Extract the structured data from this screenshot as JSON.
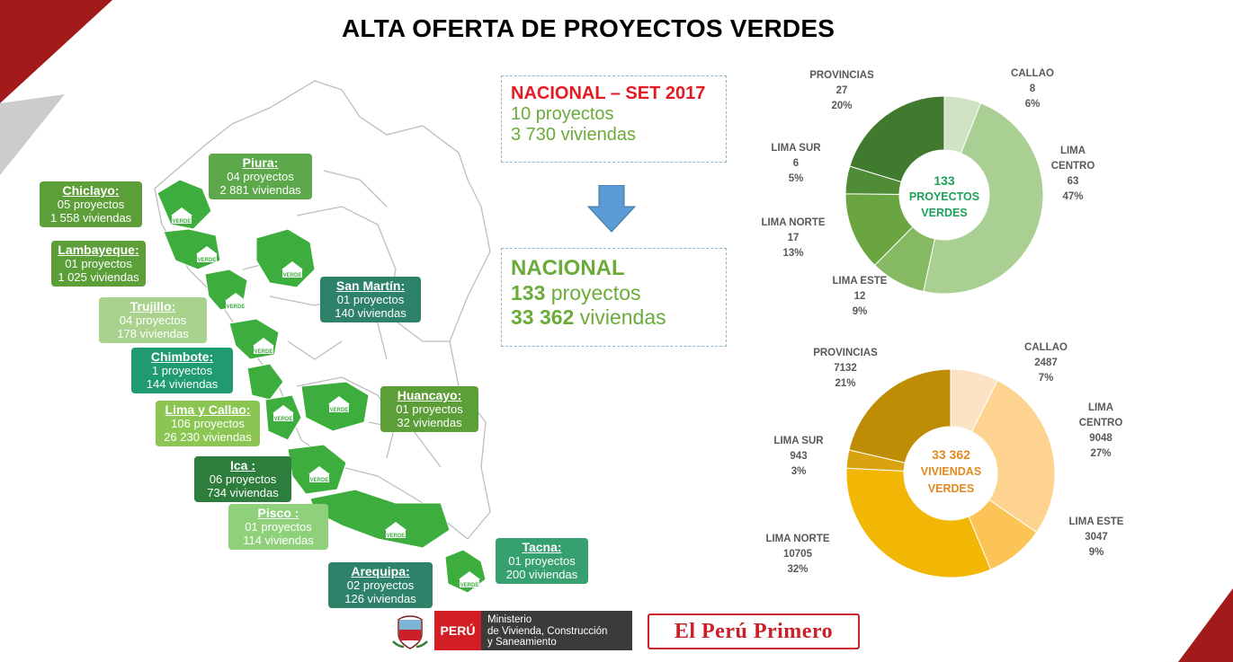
{
  "title": "ALTA OFERTA DE PROYECTOS VERDES",
  "colors": {
    "red": "#c9202a",
    "green_dark": "#2f7d32",
    "green_mid": "#4caf50",
    "teal": "#2e8b6e",
    "gold": "#e6a817"
  },
  "regions": [
    {
      "name": "Piura:",
      "projects": "04 proyectos",
      "homes": "2 881 viviendas",
      "color": "#5ca84a"
    },
    {
      "name": "Chiclayo:",
      "projects": "05 proyectos",
      "homes": "1 558 viviendas",
      "color": "#5c9e38"
    },
    {
      "name": "Lambayeque:",
      "projects": "01 proyectos",
      "homes": "1 025 viviendas",
      "color": "#5c9e38"
    },
    {
      "name": "San Martín:",
      "projects": "01 proyectos",
      "homes": "140 viviendas",
      "color": "#2e8269"
    },
    {
      "name": "Trujillo:",
      "projects": "04 proyectos",
      "homes": "178 viviendas",
      "color": "#a9d38c"
    },
    {
      "name": "Chimbote:",
      "projects": "1 proyectos",
      "homes": "144 viviendas",
      "color": "#1f9a72"
    },
    {
      "name": "Huancayo:",
      "projects": "01 proyectos",
      "homes": "32 viviendas",
      "color": "#5c9e38"
    },
    {
      "name": "Lima y Callao:",
      "projects": "106 proyectos",
      "homes": "26 230 viviendas",
      "color": "#8ac651"
    },
    {
      "name": "Ica :",
      "projects": "06 proyectos",
      "homes": "734 viviendas",
      "color": "#2d7d3c"
    },
    {
      "name": "Pisco :",
      "projects": "01 proyectos",
      "homes": "114 viviendas",
      "color": "#8fd17a"
    },
    {
      "name": "Tacna:",
      "projects": "01 proyectos",
      "homes": "200 viviendas",
      "color": "#36a06f"
    },
    {
      "name": "Arequipa:",
      "projects": "02 proyectos",
      "homes": "126 viviendas",
      "color": "#2e8269"
    }
  ],
  "map_badge": "VERDE",
  "national_set": {
    "header": "NACIONAL – SET 2017",
    "projects": "10 proyectos",
    "homes": "3 730 viviendas"
  },
  "national_total": {
    "header": "NACIONAL",
    "projects_num": "133",
    "projects_word": " proyectos",
    "homes_num": "33 362",
    "homes_word": " viviendas"
  },
  "pie_projects": {
    "center": [
      "133",
      "PROYECTOS",
      "VERDES"
    ],
    "slices": [
      {
        "label": "CALLAO",
        "value": "8",
        "pct": "6%",
        "color": "#cfe2c3"
      },
      {
        "label_lines": [
          "LIMA",
          "CENTRO"
        ],
        "label": "LIMA CENTRO",
        "value": "63",
        "pct": "47%",
        "color": "#a9cf93"
      },
      {
        "label": "LIMA ESTE",
        "value": "12",
        "pct": "9%",
        "color": "#86ba62"
      },
      {
        "label": "LIMA NORTE",
        "value": "17",
        "pct": "13%",
        "color": "#6aa542"
      },
      {
        "label": "LIMA SUR",
        "value": "6",
        "pct": "5%",
        "color": "#4f8c35"
      },
      {
        "label": "PROVINCIAS",
        "value": "27",
        "pct": "20%",
        "color": "#3f7a2e"
      }
    ]
  },
  "pie_homes": {
    "center": [
      "33 362",
      "VIVIENDAS",
      "VERDES"
    ],
    "slices": [
      {
        "label": "CALLAO",
        "value": "2487",
        "pct": "7%",
        "color": "#fde3c6"
      },
      {
        "label": "LIMA CENTRO",
        "value": "9048",
        "pct": "27%",
        "color": "#fdd38f"
      },
      {
        "label": "LIMA ESTE",
        "value": "3047",
        "pct": "9%",
        "color": "#fcc456"
      },
      {
        "label": "LIMA NORTE",
        "value": "10705",
        "pct": "32%",
        "color": "#f2b705"
      },
      {
        "label": "LIMA SUR",
        "value": "943",
        "pct": "3%",
        "color": "#d9a30f"
      },
      {
        "label": "PROVINCIAS",
        "value": "7132",
        "pct": "21%",
        "color": "#bf8d05"
      }
    ]
  },
  "footer": {
    "peru": "PERÚ",
    "ministry_lines": [
      "Ministerio",
      "de Vivienda, Construcción",
      "y Saneamiento"
    ],
    "slogan": "El Perú Primero"
  }
}
